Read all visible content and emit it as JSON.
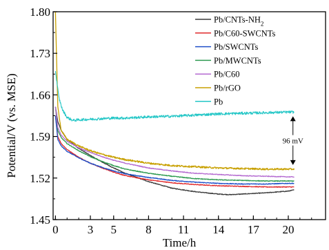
{
  "chart_data": {
    "type": "line",
    "title": "",
    "xlabel": "Time/h",
    "ylabel": "Potential/V (vs. MSE)",
    "xlim": [
      -0.2,
      23.2
    ],
    "ylim": [
      1.45,
      1.8
    ],
    "x_ticks": [
      0,
      3,
      5,
      8,
      11,
      14,
      17,
      20
    ],
    "y_ticks": [
      1.45,
      1.52,
      1.59,
      1.66,
      1.73,
      1.8
    ],
    "y_tick_labels": [
      "1.45",
      "1.52",
      "1.59",
      "1.66",
      "1.73",
      "1.80"
    ],
    "grid": false,
    "legend_position": "top-right",
    "series": [
      {
        "name": "Pb/CNTs-NH₂",
        "color": "#3a3a3a",
        "x": [
          0,
          0.2,
          0.5,
          1,
          2,
          3,
          4,
          5,
          6,
          8,
          10,
          12,
          14,
          15,
          16,
          18,
          20,
          20.5
        ],
        "y": [
          1.64,
          1.615,
          1.6,
          1.585,
          1.57,
          1.558,
          1.547,
          1.537,
          1.528,
          1.514,
          1.503,
          1.497,
          1.493,
          1.492,
          1.493,
          1.495,
          1.498,
          1.5
        ]
      },
      {
        "name": "Pb/C60-SWCNTs",
        "color": "#e0282a",
        "x": [
          0,
          0.2,
          0.5,
          1,
          2,
          3,
          4,
          5,
          6,
          8,
          10,
          12,
          14,
          16,
          18,
          20,
          20.5
        ],
        "y": [
          1.625,
          1.59,
          1.578,
          1.568,
          1.555,
          1.545,
          1.537,
          1.53,
          1.524,
          1.517,
          1.512,
          1.509,
          1.507,
          1.506,
          1.505,
          1.505,
          1.505
        ]
      },
      {
        "name": "Pb/SWCNTs",
        "color": "#1f4fc8",
        "x": [
          0,
          0.2,
          0.5,
          1,
          2,
          3,
          4,
          5,
          6,
          8,
          10,
          12,
          14,
          16,
          18,
          20,
          20.5
        ],
        "y": [
          1.625,
          1.585,
          1.574,
          1.565,
          1.554,
          1.545,
          1.538,
          1.532,
          1.527,
          1.521,
          1.516,
          1.513,
          1.511,
          1.51,
          1.51,
          1.511,
          1.511
        ]
      },
      {
        "name": "Pb/MWCNTs",
        "color": "#2e9a50",
        "x": [
          0,
          0.2,
          0.5,
          1,
          2,
          3,
          4,
          5,
          6,
          8,
          10,
          12,
          14,
          16,
          18,
          20,
          20.5
        ],
        "y": [
          1.64,
          1.6,
          1.588,
          1.578,
          1.566,
          1.556,
          1.548,
          1.541,
          1.535,
          1.528,
          1.523,
          1.519,
          1.517,
          1.516,
          1.515,
          1.515,
          1.515
        ]
      },
      {
        "name": "Pb/C60",
        "color": "#b46ad0",
        "x": [
          0,
          0.2,
          0.5,
          1,
          2,
          3,
          4,
          5,
          6,
          8,
          10,
          12,
          14,
          16,
          18,
          20,
          20.5
        ],
        "y": [
          1.64,
          1.605,
          1.592,
          1.582,
          1.571,
          1.563,
          1.556,
          1.55,
          1.545,
          1.537,
          1.532,
          1.528,
          1.526,
          1.524,
          1.523,
          1.522,
          1.522
        ]
      },
      {
        "name": "Pb/rGO",
        "color": "#c8a000",
        "x": [
          0,
          0.2,
          0.5,
          1,
          2,
          3,
          4,
          5,
          6,
          8,
          10,
          12,
          14,
          16,
          18,
          20,
          20.5
        ],
        "y": [
          1.8,
          1.64,
          1.6,
          1.585,
          1.574,
          1.566,
          1.56,
          1.555,
          1.551,
          1.545,
          1.541,
          1.539,
          1.537,
          1.536,
          1.535,
          1.535,
          1.535
        ]
      },
      {
        "name": "Pb",
        "color": "#22c6c6",
        "x": [
          0,
          0.3,
          0.6,
          1,
          1.5,
          2,
          3,
          4,
          5,
          6,
          8,
          10,
          12,
          14,
          16,
          18,
          20,
          20.5
        ],
        "y": [
          1.7,
          1.655,
          1.635,
          1.622,
          1.617,
          1.618,
          1.619,
          1.62,
          1.621,
          1.621,
          1.623,
          1.624,
          1.626,
          1.628,
          1.629,
          1.63,
          1.631,
          1.631
        ]
      }
    ],
    "annotations": [
      {
        "text": "96 mV",
        "x": 20.4,
        "y_top": 1.631,
        "y_bottom": 1.535
      }
    ]
  }
}
